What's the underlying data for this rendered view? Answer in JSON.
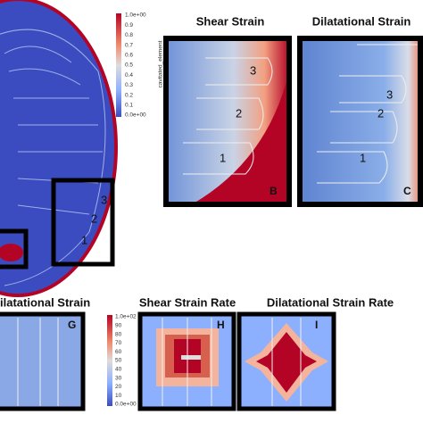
{
  "colorbar_main": {
    "label": "cavitated_element",
    "ticks": [
      "1.0e+00",
      "0.9",
      "0.8",
      "0.7",
      "0.6",
      "0.5",
      "0.4",
      "0.3",
      "0.2",
      "0.1",
      "0.0e+00"
    ]
  },
  "colorbar_rate": {
    "ticks": [
      "1.0e+02",
      "90",
      "80",
      "70",
      "60",
      "50",
      "40",
      "30",
      "20",
      "10",
      "0.0e+00"
    ]
  },
  "overview": {
    "regions": [
      "3",
      "2",
      "1"
    ]
  },
  "panels": [
    {
      "title": "Shear Strain",
      "letter": "B",
      "regions": [
        "3",
        "2",
        "1"
      ]
    },
    {
      "title": "Dilatational Strain",
      "letter": "C",
      "regions": [
        "3",
        "2",
        "1"
      ]
    },
    {
      "title": "ilatational Strain",
      "letter": "G"
    },
    {
      "title": "Shear Strain Rate",
      "letter": "H"
    },
    {
      "title": "Dilatational Strain Rate",
      "letter": "I"
    }
  ]
}
